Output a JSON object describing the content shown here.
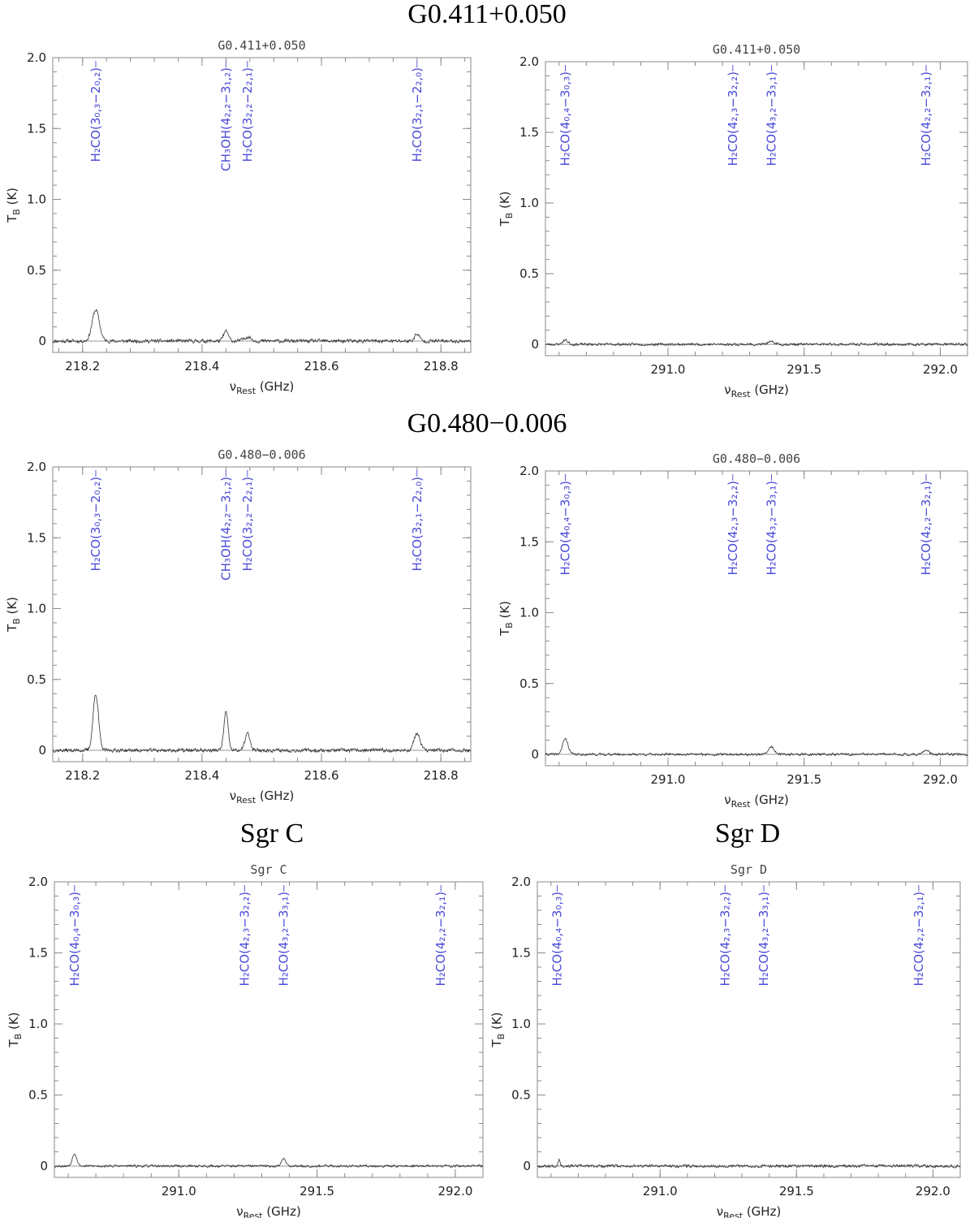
{
  "section_titles": [
    {
      "text": "G0.411+0.050",
      "cx": 600,
      "y": 28
    },
    {
      "text": "G0.480−0.006",
      "cx": 600,
      "y": 532
    },
    {
      "text": "Sgr C",
      "cx": 335,
      "y": 1037
    },
    {
      "text": "Sgr D",
      "cx": 921,
      "y": 1037
    }
  ],
  "chart_data": [
    {
      "type": "line",
      "title": "G0.411+0.050",
      "xlabel": "ν",
      "xlabel_sub": "Rest",
      "xlabel_unit": " (GHz)",
      "ylabel": "T",
      "ylabel_sub": "B",
      "ylabel_unit": " (K)",
      "xlim": [
        218.15,
        218.85
      ],
      "ylim": [
        -0.08,
        2.0
      ],
      "xticks": [
        218.2,
        218.4,
        218.6,
        218.8
      ],
      "xtick_labels": [
        "218.2",
        "218.4",
        "218.6",
        "218.8"
      ],
      "yticks": [
        0,
        0.5,
        1.0,
        1.5,
        2.0
      ],
      "ytick_labels": [
        "0",
        "0.5",
        "1.0",
        "1.5",
        "2.0"
      ],
      "noise": 0.018,
      "seed": 11,
      "peaks": [
        {
          "x": 218.222,
          "amp": 0.22,
          "width": 0.006
        },
        {
          "x": 218.44,
          "amp": 0.07,
          "width": 0.004
        },
        {
          "x": 218.476,
          "amp": 0.03,
          "width": 0.006
        },
        {
          "x": 218.76,
          "amp": 0.05,
          "width": 0.004
        }
      ],
      "labels": [
        {
          "x": 218.222,
          "text": "H₂CO(3₀,₃−2₀,₂)"
        },
        {
          "x": 218.44,
          "text": "CH₃OH(4₂,₂−3₁,₂)"
        },
        {
          "x": 218.476,
          "text": "H₂CO(3₂,₂−2₂,₁)"
        },
        {
          "x": 218.76,
          "text": "H₂CO(3₂,₁−2₂,₀)"
        }
      ]
    },
    {
      "type": "line",
      "title": "G0.411+0.050",
      "xlabel": "ν",
      "xlabel_sub": "Rest",
      "xlabel_unit": " (GHz)",
      "ylabel": "T",
      "ylabel_sub": "B",
      "ylabel_unit": " (K)",
      "xlim": [
        290.55,
        292.1
      ],
      "ylim": [
        -0.08,
        2.0
      ],
      "xticks": [
        291.0,
        291.5,
        292.0
      ],
      "xtick_labels": [
        "291.0",
        "291.5",
        "292.0"
      ],
      "yticks": [
        0,
        0.5,
        1.0,
        1.5,
        2.0
      ],
      "ytick_labels": [
        "0",
        "0.5",
        "1.0",
        "1.5",
        "2.0"
      ],
      "noise": 0.013,
      "seed": 23,
      "peaks": [
        {
          "x": 290.623,
          "amp": 0.03,
          "width": 0.01
        },
        {
          "x": 291.38,
          "amp": 0.015,
          "width": 0.015
        }
      ],
      "labels": [
        {
          "x": 290.623,
          "text": "H₂CO(4₀,₄−3₀,₃)"
        },
        {
          "x": 291.238,
          "text": "H₂CO(4₂,₃−3₂,₂)"
        },
        {
          "x": 291.38,
          "text": "H₂CO(4₃,₂−3₃,₁)"
        },
        {
          "x": 291.948,
          "text": "H₂CO(4₂,₂−3₂,₁)"
        }
      ]
    },
    {
      "type": "line",
      "title": "G0.480−0.006",
      "xlabel": "ν",
      "xlabel_sub": "Rest",
      "xlabel_unit": " (GHz)",
      "ylabel": "T",
      "ylabel_sub": "B",
      "ylabel_unit": " (K)",
      "xlim": [
        218.15,
        218.85
      ],
      "ylim": [
        -0.08,
        2.0
      ],
      "xticks": [
        218.2,
        218.4,
        218.6,
        218.8
      ],
      "xtick_labels": [
        "218.2",
        "218.4",
        "218.6",
        "218.8"
      ],
      "yticks": [
        0,
        0.5,
        1.0,
        1.5,
        2.0
      ],
      "ytick_labels": [
        "0",
        "0.5",
        "1.0",
        "1.5",
        "2.0"
      ],
      "noise": 0.018,
      "seed": 37,
      "peaks": [
        {
          "x": 218.222,
          "amp": 0.4,
          "width": 0.0045
        },
        {
          "x": 218.44,
          "amp": 0.27,
          "width": 0.0035
        },
        {
          "x": 218.476,
          "amp": 0.12,
          "width": 0.004
        },
        {
          "x": 218.76,
          "amp": 0.12,
          "width": 0.005
        }
      ],
      "labels": [
        {
          "x": 218.222,
          "text": "H₂CO(3₀,₃−2₀,₂)"
        },
        {
          "x": 218.44,
          "text": "CH₃OH(4₂,₂−3₁,₂)"
        },
        {
          "x": 218.476,
          "text": "H₂CO(3₂,₂−2₂,₁)"
        },
        {
          "x": 218.76,
          "text": "H₂CO(3₂,₁−2₂,₀)"
        }
      ]
    },
    {
      "type": "line",
      "title": "G0.480−0.006",
      "xlabel": "ν",
      "xlabel_sub": "Rest",
      "xlabel_unit": " (GHz)",
      "ylabel": "T",
      "ylabel_sub": "B",
      "ylabel_unit": " (K)",
      "xlim": [
        290.55,
        292.1
      ],
      "ylim": [
        -0.08,
        2.0
      ],
      "xticks": [
        291.0,
        291.5,
        292.0
      ],
      "xtick_labels": [
        "291.0",
        "291.5",
        "292.0"
      ],
      "yticks": [
        0,
        0.5,
        1.0,
        1.5,
        2.0
      ],
      "ytick_labels": [
        "0",
        "0.5",
        "1.0",
        "1.5",
        "2.0"
      ],
      "noise": 0.012,
      "seed": 41,
      "peaks": [
        {
          "x": 290.623,
          "amp": 0.11,
          "width": 0.01
        },
        {
          "x": 291.38,
          "amp": 0.055,
          "width": 0.01
        },
        {
          "x": 291.948,
          "amp": 0.03,
          "width": 0.01
        }
      ],
      "labels": [
        {
          "x": 290.623,
          "text": "H₂CO(4₀,₄−3₀,₃)"
        },
        {
          "x": 291.238,
          "text": "H₂CO(4₂,₃−3₂,₂)"
        },
        {
          "x": 291.38,
          "text": "H₂CO(4₃,₂−3₃,₁)"
        },
        {
          "x": 291.948,
          "text": "H₂CO(4₂,₂−3₂,₁)"
        }
      ]
    },
    {
      "type": "line",
      "title": "Sgr C",
      "xlabel": "ν",
      "xlabel_sub": "Rest",
      "xlabel_unit": " (GHz)",
      "ylabel": "T",
      "ylabel_sub": "B",
      "ylabel_unit": " (K)",
      "xlim": [
        290.55,
        292.1
      ],
      "ylim": [
        -0.08,
        2.0
      ],
      "xticks": [
        291.0,
        291.5,
        292.0
      ],
      "xtick_labels": [
        "291.0",
        "291.5",
        "292.0"
      ],
      "yticks": [
        0,
        0.5,
        1.0,
        1.5,
        2.0
      ],
      "ytick_labels": [
        "0",
        "0.5",
        "1.0",
        "1.5",
        "2.0"
      ],
      "noise": 0.012,
      "seed": 53,
      "peaks": [
        {
          "x": 290.623,
          "amp": 0.09,
          "width": 0.008
        },
        {
          "x": 291.38,
          "amp": 0.05,
          "width": 0.008
        }
      ],
      "labels": [
        {
          "x": 290.623,
          "text": "H₂CO(4₀,₄−3₀,₃)"
        },
        {
          "x": 291.238,
          "text": "H₂CO(4₂,₃−3₂,₂)"
        },
        {
          "x": 291.38,
          "text": "H₂CO(4₃,₂−3₃,₁)"
        },
        {
          "x": 291.948,
          "text": "H₂CO(4₂,₂−3₂,₁)"
        }
      ]
    },
    {
      "type": "line",
      "title": "Sgr D",
      "xlabel": "ν",
      "xlabel_sub": "Rest",
      "xlabel_unit": " (GHz)",
      "ylabel": "T",
      "ylabel_sub": "B",
      "ylabel_unit": " (K)",
      "xlim": [
        290.55,
        292.1
      ],
      "ylim": [
        -0.08,
        2.0
      ],
      "xticks": [
        291.0,
        291.5,
        292.0
      ],
      "xtick_labels": [
        "291.0",
        "291.5",
        "292.0"
      ],
      "yticks": [
        0,
        0.5,
        1.0,
        1.5,
        2.0
      ],
      "ytick_labels": [
        "0",
        "0.5",
        "1.0",
        "1.5",
        "2.0"
      ],
      "noise": 0.014,
      "seed": 67,
      "peaks": [
        {
          "x": 290.63,
          "amp": 0.05,
          "width": 0.004
        }
      ],
      "labels": [
        {
          "x": 290.623,
          "text": "H₂CO(4₀,₄−3₀,₃)"
        },
        {
          "x": 291.238,
          "text": "H₂CO(4₂,₃−3₂,₂)"
        },
        {
          "x": 291.38,
          "text": "H₂CO(4₃,₂−3₃,₁)"
        },
        {
          "x": 291.948,
          "text": "H₂CO(4₂,₂−3₂,₁)"
        }
      ]
    }
  ]
}
